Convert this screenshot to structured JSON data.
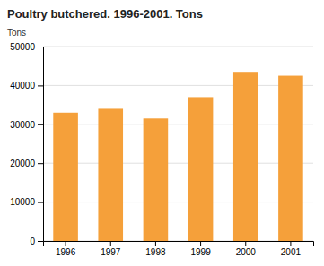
{
  "chart_data": {
    "type": "bar",
    "title": "Poultry butchered. 1996-2001. Tons",
    "ylabel": "Tons",
    "categories": [
      "1996",
      "1997",
      "1998",
      "1999",
      "2000",
      "2001"
    ],
    "values": [
      33000,
      34000,
      31500,
      37000,
      43500,
      42500
    ],
    "color": "#F5A03A",
    "ylim": [
      0,
      50000
    ],
    "yticks": [
      0,
      10000,
      20000,
      30000,
      40000,
      50000
    ],
    "grid": true
  }
}
